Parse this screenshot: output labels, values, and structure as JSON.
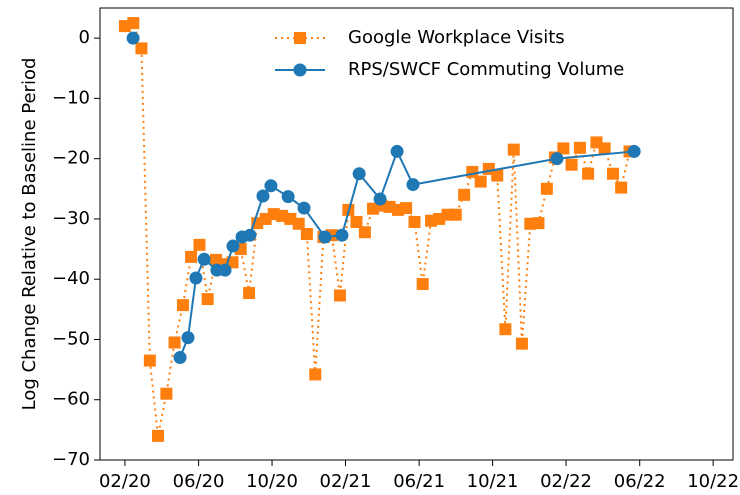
{
  "chart_data": {
    "type": "line",
    "ylabel": "Log Change Relative to Baseline Period",
    "xlim": [
      2019.97,
      2022.84
    ],
    "ylim": [
      -70,
      5
    ],
    "xticks": [
      {
        "value": 2020.083,
        "label": "02/20"
      },
      {
        "value": 2020.417,
        "label": "06/20"
      },
      {
        "value": 2020.75,
        "label": "10/20"
      },
      {
        "value": 2021.083,
        "label": "02/21"
      },
      {
        "value": 2021.417,
        "label": "06/21"
      },
      {
        "value": 2021.75,
        "label": "10/21"
      },
      {
        "value": 2022.083,
        "label": "02/22"
      },
      {
        "value": 2022.417,
        "label": "06/22"
      },
      {
        "value": 2022.75,
        "label": "10/22"
      }
    ],
    "yticks": [
      {
        "value": -70,
        "label": "−70"
      },
      {
        "value": -60,
        "label": "−60"
      },
      {
        "value": -50,
        "label": "−50"
      },
      {
        "value": -40,
        "label": "−40"
      },
      {
        "value": -30,
        "label": "−30"
      },
      {
        "value": -20,
        "label": "−20"
      },
      {
        "value": -10,
        "label": "−10"
      },
      0
    ],
    "legend": "upper center",
    "series": [
      {
        "name": "Google Workplace Visits",
        "color": "#ff7f0e",
        "marker": "square",
        "linestyle": "dotted",
        "x": [
          2020.083,
          2020.121,
          2020.158,
          2020.196,
          2020.233,
          2020.271,
          2020.308,
          2020.346,
          2020.383,
          2020.421,
          2020.458,
          2020.496,
          2020.533,
          2020.571,
          2020.608,
          2020.646,
          2020.683,
          2020.721,
          2020.758,
          2020.796,
          2020.833,
          2020.871,
          2020.908,
          2020.946,
          2020.983,
          2021.021,
          2021.058,
          2021.096,
          2021.133,
          2021.171,
          2021.208,
          2021.246,
          2021.283,
          2021.321,
          2021.358,
          2021.396,
          2021.433,
          2021.471,
          2021.508,
          2021.546,
          2021.583,
          2021.621,
          2021.658,
          2021.696,
          2021.733,
          2021.771,
          2021.808,
          2021.846,
          2021.883,
          2021.921,
          2021.958,
          2021.996,
          2022.033,
          2022.071,
          2022.108,
          2022.146,
          2022.183,
          2022.221,
          2022.258,
          2022.296,
          2022.333,
          2022.371
        ],
        "values": [
          2.0,
          2.5,
          -1.7,
          -53.5,
          -66,
          -59,
          -50.5,
          -44.3,
          -36.3,
          -34.3,
          -43.3,
          -36.8,
          -37.5,
          -37.2,
          -35,
          -42.3,
          -30.7,
          -30,
          -29.2,
          -29.5,
          -30,
          -30.8,
          -32.5,
          -55.8,
          -33,
          -32.7,
          -42.7,
          -28.5,
          -30.5,
          -32.2,
          -28.3,
          -27.8,
          -28,
          -28.5,
          -28.2,
          -30.5,
          -40.8,
          -30.3,
          -30,
          -29.3,
          -29.3,
          -26,
          -22.2,
          -23.8,
          -21.7,
          -22.8,
          -48.3,
          -18.5,
          -50.7,
          -30.8,
          -30.7,
          -25,
          -19.8,
          -18.3,
          -21,
          -18.2,
          -22.5,
          -17.3,
          -18.3,
          -22.5,
          -24.8,
          -18.8
        ]
      },
      {
        "name": "RPS/SWCF Commuting Volume",
        "color": "#1f77b4",
        "marker": "circle",
        "linestyle": "solid",
        "x": [
          2020.12,
          null,
          2020.333,
          2020.369,
          2020.405,
          2020.442,
          2020.5,
          2020.537,
          2020.573,
          2020.614,
          2020.65,
          2020.709,
          2020.745,
          2020.823,
          2020.895,
          2020.99,
          2021.067,
          2021.145,
          2021.24,
          2021.317,
          2021.389,
          2022.042,
          2022.392
        ],
        "values": [
          0,
          null,
          -53,
          -49.7,
          -39.8,
          -36.7,
          -38.5,
          -38.5,
          -34.5,
          -33,
          -32.7,
          -26.2,
          -24.5,
          -26.3,
          -28.2,
          -33,
          -32.7,
          -22.5,
          -26.7,
          -18.8,
          -24.3,
          -20,
          -18.8
        ]
      }
    ]
  }
}
